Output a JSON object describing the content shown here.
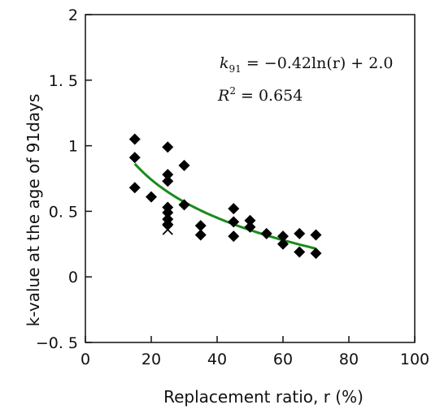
{
  "chart_data": {
    "type": "scatter",
    "xlabel": "Replacement ratio, r (%)",
    "ylabel": "k-value at the age of 91days",
    "xlim": [
      0,
      100
    ],
    "ylim": [
      -0.5,
      2
    ],
    "xticks": [
      0,
      20,
      40,
      60,
      80,
      100
    ],
    "yticks": [
      -0.5,
      0,
      0.5,
      1,
      1.5,
      2
    ],
    "xtick_labels": [
      "0",
      "20",
      "40",
      "60",
      "80",
      "100"
    ],
    "ytick_labels": [
      "−0. 5",
      "0",
      "0. 5",
      "1",
      "1. 5",
      "2"
    ],
    "grid": false,
    "series": [
      {
        "marker": "diamond",
        "color": "#000000",
        "points": [
          [
            15,
            1.05
          ],
          [
            15,
            0.91
          ],
          [
            15,
            0.68
          ],
          [
            20,
            0.61
          ],
          [
            25,
            0.99
          ],
          [
            25,
            0.78
          ],
          [
            25,
            0.73
          ],
          [
            25,
            0.53
          ],
          [
            25,
            0.49
          ],
          [
            25,
            0.44
          ],
          [
            25,
            0.4
          ],
          [
            30,
            0.85
          ],
          [
            30,
            0.55
          ],
          [
            35,
            0.39
          ],
          [
            35,
            0.32
          ],
          [
            45,
            0.52
          ],
          [
            45,
            0.42
          ],
          [
            45,
            0.31
          ],
          [
            50,
            0.43
          ],
          [
            50,
            0.38
          ],
          [
            55,
            0.33
          ],
          [
            60,
            0.31
          ],
          [
            60,
            0.25
          ],
          [
            65,
            0.33
          ],
          [
            65,
            0.19
          ],
          [
            70,
            0.32
          ],
          [
            70,
            0.18
          ]
        ]
      },
      {
        "marker": "x",
        "color": "#000000",
        "points": [
          [
            25,
            0.36
          ]
        ]
      }
    ],
    "fit_curve": {
      "color": "#1a8a1a",
      "equation_type": "logarithmic",
      "a": -0.42,
      "b": 2.0,
      "x_range": [
        15,
        70
      ]
    },
    "annotations": {
      "eq_k": "k",
      "eq_sub": "91",
      "eq_rest": " = −0.42ln(r) + 2.0",
      "r2_r": "R",
      "r2_sup": "2",
      "r2_rest": " = 0.654"
    }
  }
}
